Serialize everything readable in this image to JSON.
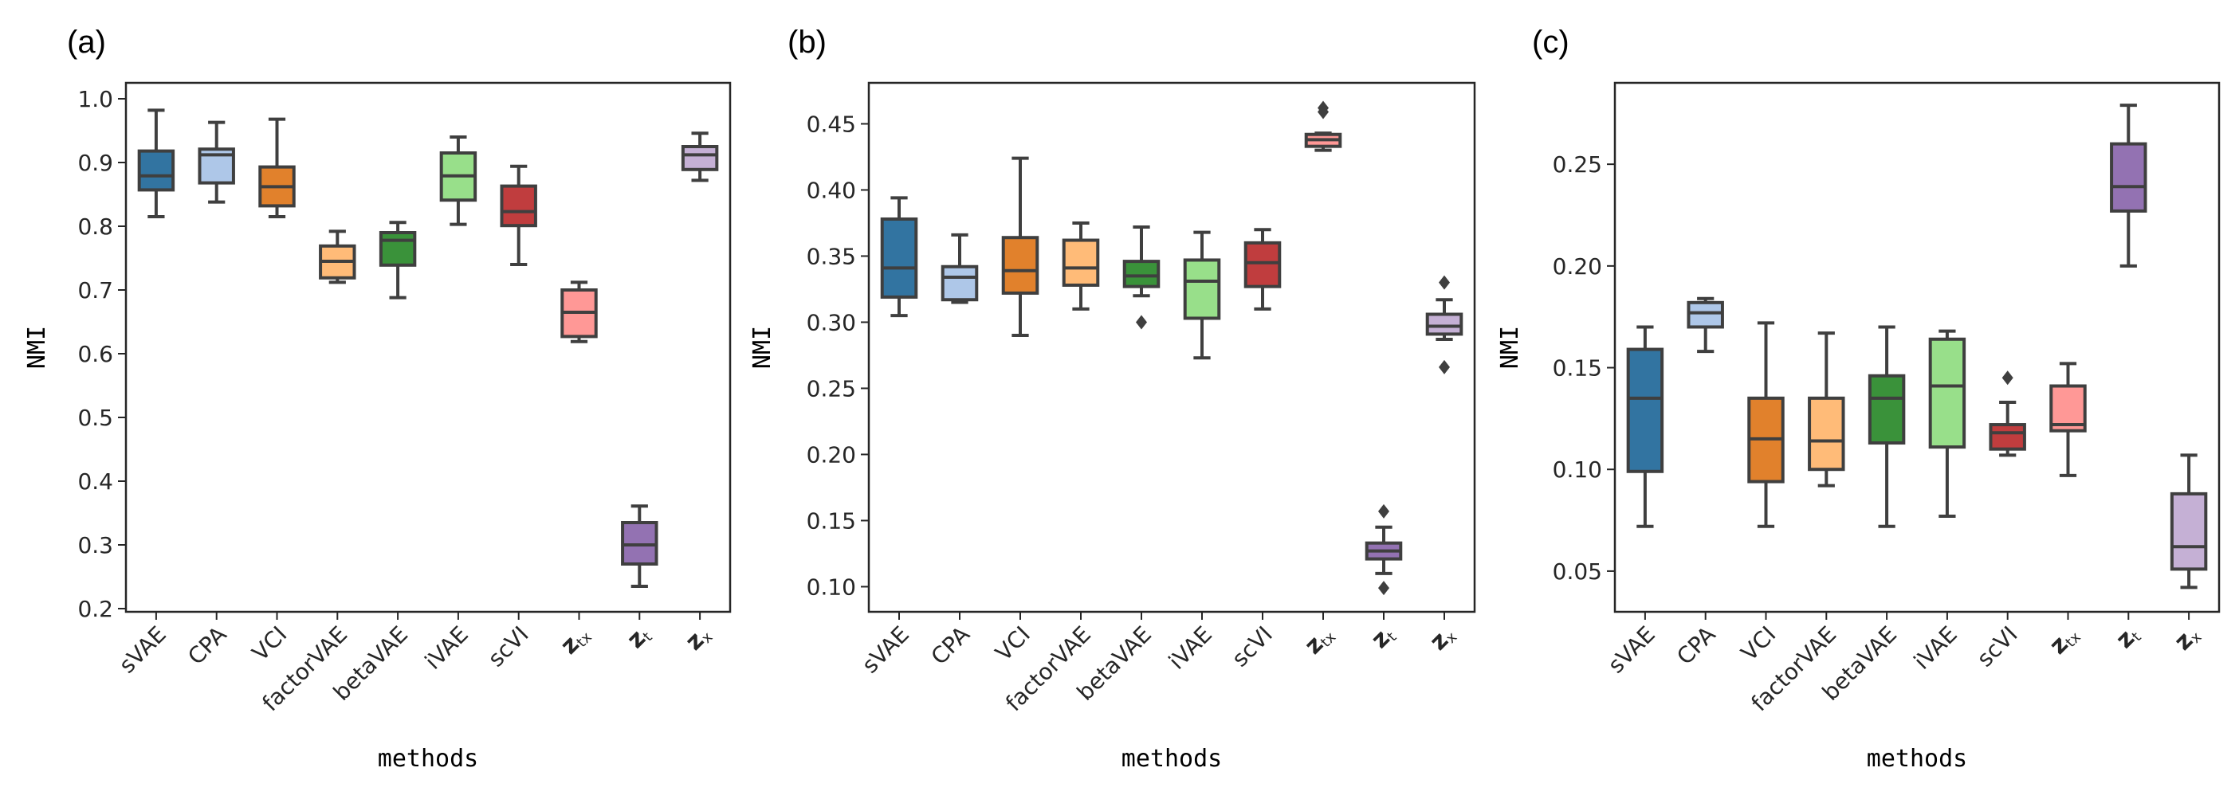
{
  "chart_data": [
    {
      "type": "box",
      "panel_label": "(a)",
      "xlabel": "methods",
      "ylabel": "NMI",
      "ylim": [
        0.195,
        1.025
      ],
      "yticks": [
        "0.2",
        "0.3",
        "0.4",
        "0.5",
        "0.6",
        "0.7",
        "0.8",
        "0.9",
        "1.0"
      ],
      "ytick_values": [
        0.2,
        0.3,
        0.4,
        0.5,
        0.6,
        0.7,
        0.8,
        0.9,
        1.0
      ],
      "boxes": [
        {
          "category": "sVAE",
          "sub": "",
          "color": "#3274a1",
          "whislo": 0.815,
          "q1": 0.857,
          "med": 0.879,
          "q3": 0.918,
          "whishi": 0.982,
          "fliers": []
        },
        {
          "category": "CPA",
          "sub": "",
          "color": "#aec7e8",
          "whislo": 0.838,
          "q1": 0.868,
          "med": 0.912,
          "q3": 0.921,
          "whishi": 0.963,
          "fliers": []
        },
        {
          "category": "VCI",
          "sub": "",
          "color": "#e1812c",
          "whislo": 0.815,
          "q1": 0.832,
          "med": 0.862,
          "q3": 0.893,
          "whishi": 0.968,
          "fliers": []
        },
        {
          "category": "factorVAE",
          "sub": "",
          "color": "#ffbb78",
          "whislo": 0.712,
          "q1": 0.719,
          "med": 0.745,
          "q3": 0.769,
          "whishi": 0.792,
          "fliers": []
        },
        {
          "category": "betaVAE",
          "sub": "",
          "color": "#3a923a",
          "whislo": 0.688,
          "q1": 0.739,
          "med": 0.778,
          "q3": 0.79,
          "whishi": 0.806,
          "fliers": []
        },
        {
          "category": "iVAE",
          "sub": "",
          "color": "#98df8a",
          "whislo": 0.803,
          "q1": 0.841,
          "med": 0.879,
          "q3": 0.915,
          "whishi": 0.94,
          "fliers": []
        },
        {
          "category": "scVI",
          "sub": "",
          "color": "#c03d3e",
          "whislo": 0.74,
          "q1": 0.801,
          "med": 0.823,
          "q3": 0.863,
          "whishi": 0.894,
          "fliers": []
        },
        {
          "category": "z",
          "sub": "tx",
          "color": "#ff9896",
          "whislo": 0.619,
          "q1": 0.627,
          "med": 0.665,
          "q3": 0.7,
          "whishi": 0.712,
          "fliers": []
        },
        {
          "category": "z",
          "sub": "t",
          "color": "#9372b2",
          "whislo": 0.235,
          "q1": 0.27,
          "med": 0.3,
          "q3": 0.335,
          "whishi": 0.361,
          "fliers": []
        },
        {
          "category": "z",
          "sub": "x",
          "color": "#c5b0d5",
          "whislo": 0.872,
          "q1": 0.889,
          "med": 0.912,
          "q3": 0.925,
          "whishi": 0.946,
          "fliers": []
        }
      ]
    },
    {
      "type": "box",
      "panel_label": "(b)",
      "xlabel": "methods",
      "ylabel": "NMI",
      "ylim": [
        0.081,
        0.481
      ],
      "yticks": [
        "0.10",
        "0.15",
        "0.20",
        "0.25",
        "0.30",
        "0.35",
        "0.40",
        "0.45"
      ],
      "ytick_values": [
        0.1,
        0.15,
        0.2,
        0.25,
        0.3,
        0.35,
        0.4,
        0.45
      ],
      "boxes": [
        {
          "category": "sVAE",
          "sub": "",
          "color": "#3274a1",
          "whislo": 0.305,
          "q1": 0.319,
          "med": 0.341,
          "q3": 0.378,
          "whishi": 0.394,
          "fliers": []
        },
        {
          "category": "CPA",
          "sub": "",
          "color": "#aec7e8",
          "whislo": 0.315,
          "q1": 0.317,
          "med": 0.334,
          "q3": 0.342,
          "whishi": 0.366,
          "fliers": []
        },
        {
          "category": "VCI",
          "sub": "",
          "color": "#e1812c",
          "whislo": 0.29,
          "q1": 0.322,
          "med": 0.339,
          "q3": 0.364,
          "whishi": 0.424,
          "fliers": []
        },
        {
          "category": "factorVAE",
          "sub": "",
          "color": "#ffbb78",
          "whislo": 0.31,
          "q1": 0.328,
          "med": 0.341,
          "q3": 0.362,
          "whishi": 0.375,
          "fliers": []
        },
        {
          "category": "betaVAE",
          "sub": "",
          "color": "#3a923a",
          "whislo": 0.32,
          "q1": 0.327,
          "med": 0.335,
          "q3": 0.346,
          "whishi": 0.372,
          "fliers": [
            0.3
          ]
        },
        {
          "category": "iVAE",
          "sub": "",
          "color": "#98df8a",
          "whislo": 0.273,
          "q1": 0.303,
          "med": 0.331,
          "q3": 0.347,
          "whishi": 0.368,
          "fliers": []
        },
        {
          "category": "scVI",
          "sub": "",
          "color": "#c03d3e",
          "whislo": 0.31,
          "q1": 0.327,
          "med": 0.345,
          "q3": 0.36,
          "whishi": 0.37,
          "fliers": []
        },
        {
          "category": "z",
          "sub": "tx",
          "color": "#ff9896",
          "whislo": 0.43,
          "q1": 0.433,
          "med": 0.438,
          "q3": 0.442,
          "whishi": 0.443,
          "fliers": [
            0.459,
            0.462
          ]
        },
        {
          "category": "z",
          "sub": "t",
          "color": "#9372b2",
          "whislo": 0.11,
          "q1": 0.121,
          "med": 0.127,
          "q3": 0.133,
          "whishi": 0.145,
          "fliers": [
            0.157,
            0.099
          ]
        },
        {
          "category": "z",
          "sub": "x",
          "color": "#c5b0d5",
          "whislo": 0.287,
          "q1": 0.291,
          "med": 0.297,
          "q3": 0.306,
          "whishi": 0.317,
          "fliers": [
            0.33,
            0.266
          ]
        }
      ]
    },
    {
      "type": "box",
      "panel_label": "(c)",
      "xlabel": "methods",
      "ylabel": "NMI",
      "ylim": [
        0.03,
        0.29
      ],
      "yticks": [
        "0.05",
        "0.10",
        "0.15",
        "0.20",
        "0.25"
      ],
      "ytick_values": [
        0.05,
        0.1,
        0.15,
        0.2,
        0.25
      ],
      "boxes": [
        {
          "category": "sVAE",
          "sub": "",
          "color": "#3274a1",
          "whislo": 0.072,
          "q1": 0.099,
          "med": 0.135,
          "q3": 0.159,
          "whishi": 0.17,
          "fliers": []
        },
        {
          "category": "CPA",
          "sub": "",
          "color": "#aec7e8",
          "whislo": 0.158,
          "q1": 0.17,
          "med": 0.177,
          "q3": 0.182,
          "whishi": 0.184,
          "fliers": []
        },
        {
          "category": "VCI",
          "sub": "",
          "color": "#e1812c",
          "whislo": 0.072,
          "q1": 0.094,
          "med": 0.115,
          "q3": 0.135,
          "whishi": 0.172,
          "fliers": []
        },
        {
          "category": "factorVAE",
          "sub": "",
          "color": "#ffbb78",
          "whislo": 0.092,
          "q1": 0.1,
          "med": 0.114,
          "q3": 0.135,
          "whishi": 0.167,
          "fliers": []
        },
        {
          "category": "betaVAE",
          "sub": "",
          "color": "#3a923a",
          "whislo": 0.072,
          "q1": 0.113,
          "med": 0.135,
          "q3": 0.146,
          "whishi": 0.17,
          "fliers": []
        },
        {
          "category": "iVAE",
          "sub": "",
          "color": "#98df8a",
          "whislo": 0.077,
          "q1": 0.111,
          "med": 0.141,
          "q3": 0.164,
          "whishi": 0.168,
          "fliers": []
        },
        {
          "category": "scVI",
          "sub": "",
          "color": "#c03d3e",
          "whislo": 0.107,
          "q1": 0.11,
          "med": 0.118,
          "q3": 0.122,
          "whishi": 0.133,
          "fliers": [
            0.145
          ]
        },
        {
          "category": "z",
          "sub": "tx",
          "color": "#ff9896",
          "whislo": 0.097,
          "q1": 0.119,
          "med": 0.122,
          "q3": 0.141,
          "whishi": 0.152,
          "fliers": []
        },
        {
          "category": "z",
          "sub": "t",
          "color": "#9372b2",
          "whislo": 0.2,
          "q1": 0.227,
          "med": 0.239,
          "q3": 0.26,
          "whishi": 0.279,
          "fliers": []
        },
        {
          "category": "z",
          "sub": "x",
          "color": "#c5b0d5",
          "whislo": 0.042,
          "q1": 0.051,
          "med": 0.062,
          "q3": 0.088,
          "whishi": 0.107,
          "fliers": []
        }
      ]
    }
  ]
}
